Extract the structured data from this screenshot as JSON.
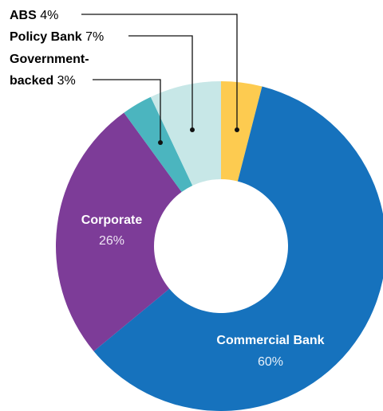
{
  "chart_data": {
    "type": "pie",
    "donut": true,
    "title": "",
    "legend": "none",
    "slices": [
      {
        "name": "ABS",
        "value": 4,
        "label": "4%",
        "color": "#fdcb50"
      },
      {
        "name": "Commercial Bank",
        "value": 60,
        "label": "60%",
        "color": "#1672bd"
      },
      {
        "name": "Corporate",
        "value": 26,
        "label": "26%",
        "color": "#7d3c98"
      },
      {
        "name": "Government-",
        "name_line2": "backed",
        "value": 3,
        "label": "3%",
        "color": "#4bb5bf"
      },
      {
        "name": "Policy Bank",
        "value": 7,
        "label": "7%",
        "color": "#c7e7e7"
      }
    ]
  }
}
